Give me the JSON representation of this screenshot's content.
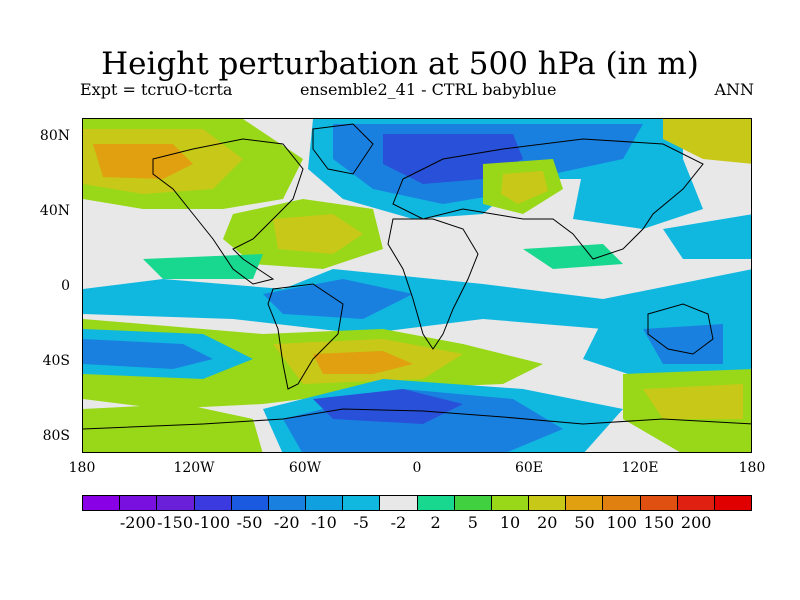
{
  "title": "Height perturbation at 500 hPa (in m)",
  "subtitle_left": "Expt = tcruO-tcrta",
  "subtitle_center": "ensemble2_41 - CTRL babyblue",
  "subtitle_right": "ANN",
  "y_axis_labels": [
    "80N",
    "40N",
    "0",
    "40S",
    "80S"
  ],
  "x_axis_labels": [
    "180",
    "120W",
    "60W",
    "0",
    "60E",
    "120E",
    "180"
  ],
  "colorbar": {
    "colors": [
      "#8a00e6",
      "#7a10e0",
      "#6a20d8",
      "#3a3ae0",
      "#1a5ae0",
      "#1a80e0",
      "#10a0e0",
      "#10b8e0",
      "#e8e8e8",
      "#18d890",
      "#40d040",
      "#98d818",
      "#c8c818",
      "#e0a010",
      "#e08010",
      "#e05010",
      "#e02010",
      "#e00000"
    ],
    "labels": [
      "-200",
      "-150",
      "-100",
      "-50",
      "-20",
      "-10",
      "-5",
      "-2",
      "2",
      "5",
      "10",
      "20",
      "50",
      "100",
      "150",
      "200"
    ]
  },
  "map_colors": {
    "background": "#e8e8e8",
    "strong_negative": "#2850d8",
    "negative": "#1a80e0",
    "weak_negative": "#10b8e0",
    "weak_positive": "#18d890",
    "positive": "#98d818",
    "strong_positive": "#c8c818",
    "high_positive": "#e0a010",
    "coastline": "#000000"
  }
}
